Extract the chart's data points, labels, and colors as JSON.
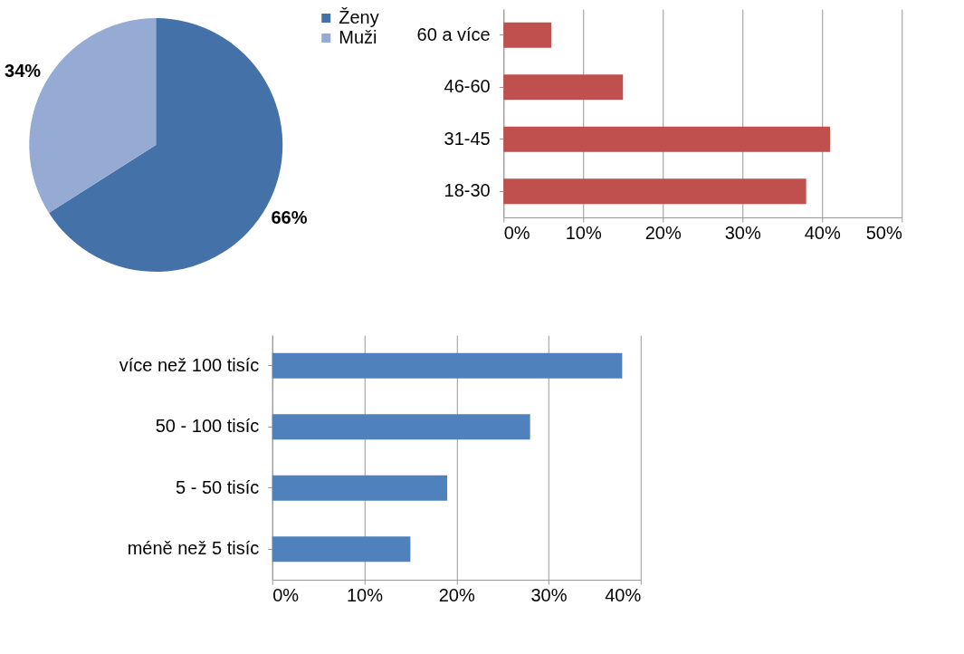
{
  "chart_data": [
    {
      "type": "pie",
      "categories": [
        "Ženy",
        "Muži"
      ],
      "values": [
        66,
        34
      ],
      "colors": [
        "#4472a8",
        "#95abd3"
      ],
      "value_labels": [
        "66%",
        "34%"
      ],
      "legend": "right"
    },
    {
      "type": "bar",
      "orientation": "horizontal",
      "categories": [
        "60 a více",
        "46-60",
        "31-45",
        "18-30"
      ],
      "values": [
        6,
        15,
        41,
        38
      ],
      "color": "#c0504d",
      "xlim": [
        0,
        50
      ],
      "xticks": [
        {
          "value": 0,
          "label": "0%"
        },
        {
          "value": 10,
          "label": "10%"
        },
        {
          "value": 20,
          "label": "20%"
        },
        {
          "value": 30,
          "label": "30%"
        },
        {
          "value": 40,
          "label": "40%"
        },
        {
          "value": 50,
          "label": "50%"
        }
      ],
      "grid": "x"
    },
    {
      "type": "bar",
      "orientation": "horizontal",
      "categories": [
        "více než 100 tisíc",
        "50 - 100 tisíc",
        "5 - 50 tisíc",
        "méně než 5 tisíc"
      ],
      "values": [
        38,
        28,
        19,
        15
      ],
      "color": "#4f81bd",
      "xlim": [
        0,
        40
      ],
      "xticks": [
        {
          "value": 0,
          "label": "0%"
        },
        {
          "value": 10,
          "label": "10%"
        },
        {
          "value": 20,
          "label": "20%"
        },
        {
          "value": 30,
          "label": "30%"
        },
        {
          "value": 40,
          "label": "40%"
        }
      ],
      "grid": "x"
    }
  ]
}
